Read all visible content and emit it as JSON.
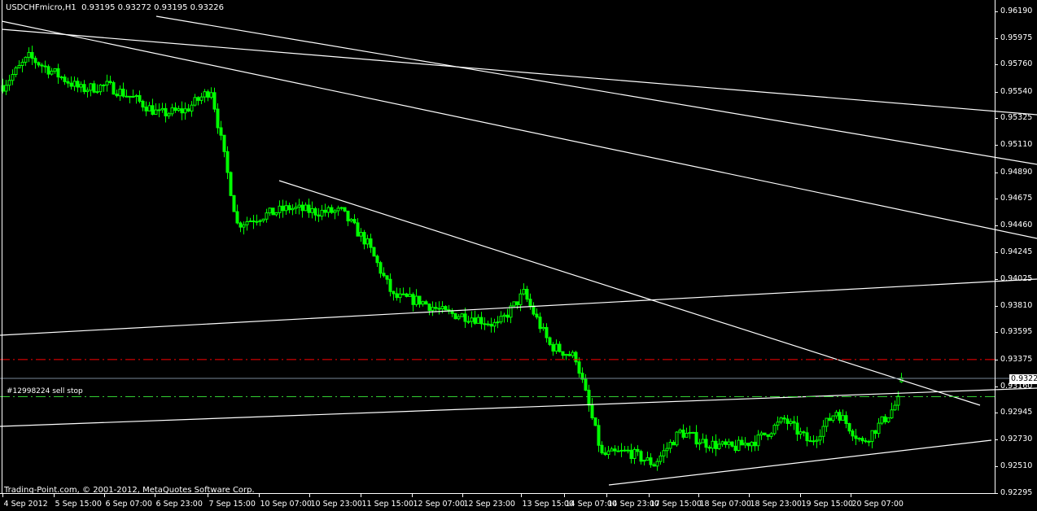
{
  "header": {
    "symbol_timeframe": "USDCHFmicro,H1",
    "ohlc": "0.93195 0.93272 0.93195 0.93226"
  },
  "order_label": "#12998224 sell stop",
  "copyright": "Trading-Point.com, © 2001-2012, MetaQuotes Software Corp.",
  "colors": {
    "background": "#000000",
    "candle": "#00ff00",
    "trendline": "#ffffff",
    "stop_loss_line": "#ff0000",
    "bid_line": "#778899",
    "pending_order_line": "#32cd32"
  },
  "chart_data": {
    "type": "candlestick",
    "timeframe": "H1",
    "price_ticks": [
      "0.96190",
      "0.95975",
      "0.95760",
      "0.95540",
      "0.95325",
      "0.95110",
      "0.94890",
      "0.94675",
      "0.94460",
      "0.94245",
      "0.94025",
      "0.93810",
      "0.93595",
      "0.93375",
      "0.93160",
      "0.92945",
      "0.92730",
      "0.92510",
      "0.92295"
    ],
    "time_ticks": [
      "4 Sep 2012",
      "5 Sep 15:00",
      "6 Sep 07:00",
      "6 Sep 23:00",
      "7 Sep 15:00",
      "10 Sep 07:00",
      "10 Sep 23:00",
      "11 Sep 15:00",
      "12 Sep 07:00",
      "12 Sep 23:00",
      "13 Sep 15:00",
      "14 Sep 07:00",
      "14 Sep 23:00",
      "17 Sep 15:00",
      "18 Sep 07:00",
      "18 Sep 23:00",
      "19 Sep 15:00",
      "20 Sep 07:00"
    ],
    "ylim": [
      0.92295,
      0.9619
    ],
    "approx_closes": [
      0.9559,
      0.9582,
      0.9569,
      0.9556,
      0.9559,
      0.9549,
      0.9536,
      0.9539,
      0.9556,
      0.9447,
      0.9454,
      0.946,
      0.9457,
      0.9457,
      0.9431,
      0.9388,
      0.9385,
      0.9375,
      0.9372,
      0.9365,
      0.9391,
      0.9349,
      0.9339,
      0.926,
      0.9263,
      0.9253,
      0.9279,
      0.927,
      0.9266,
      0.9273,
      0.9289,
      0.927,
      0.9296,
      0.927,
      0.9293,
      0.93226
    ],
    "current_bid": "0.93226",
    "levels": {
      "stop_loss": 0.93375,
      "bid": 0.93226,
      "sell_stop": 0.93085
    }
  }
}
